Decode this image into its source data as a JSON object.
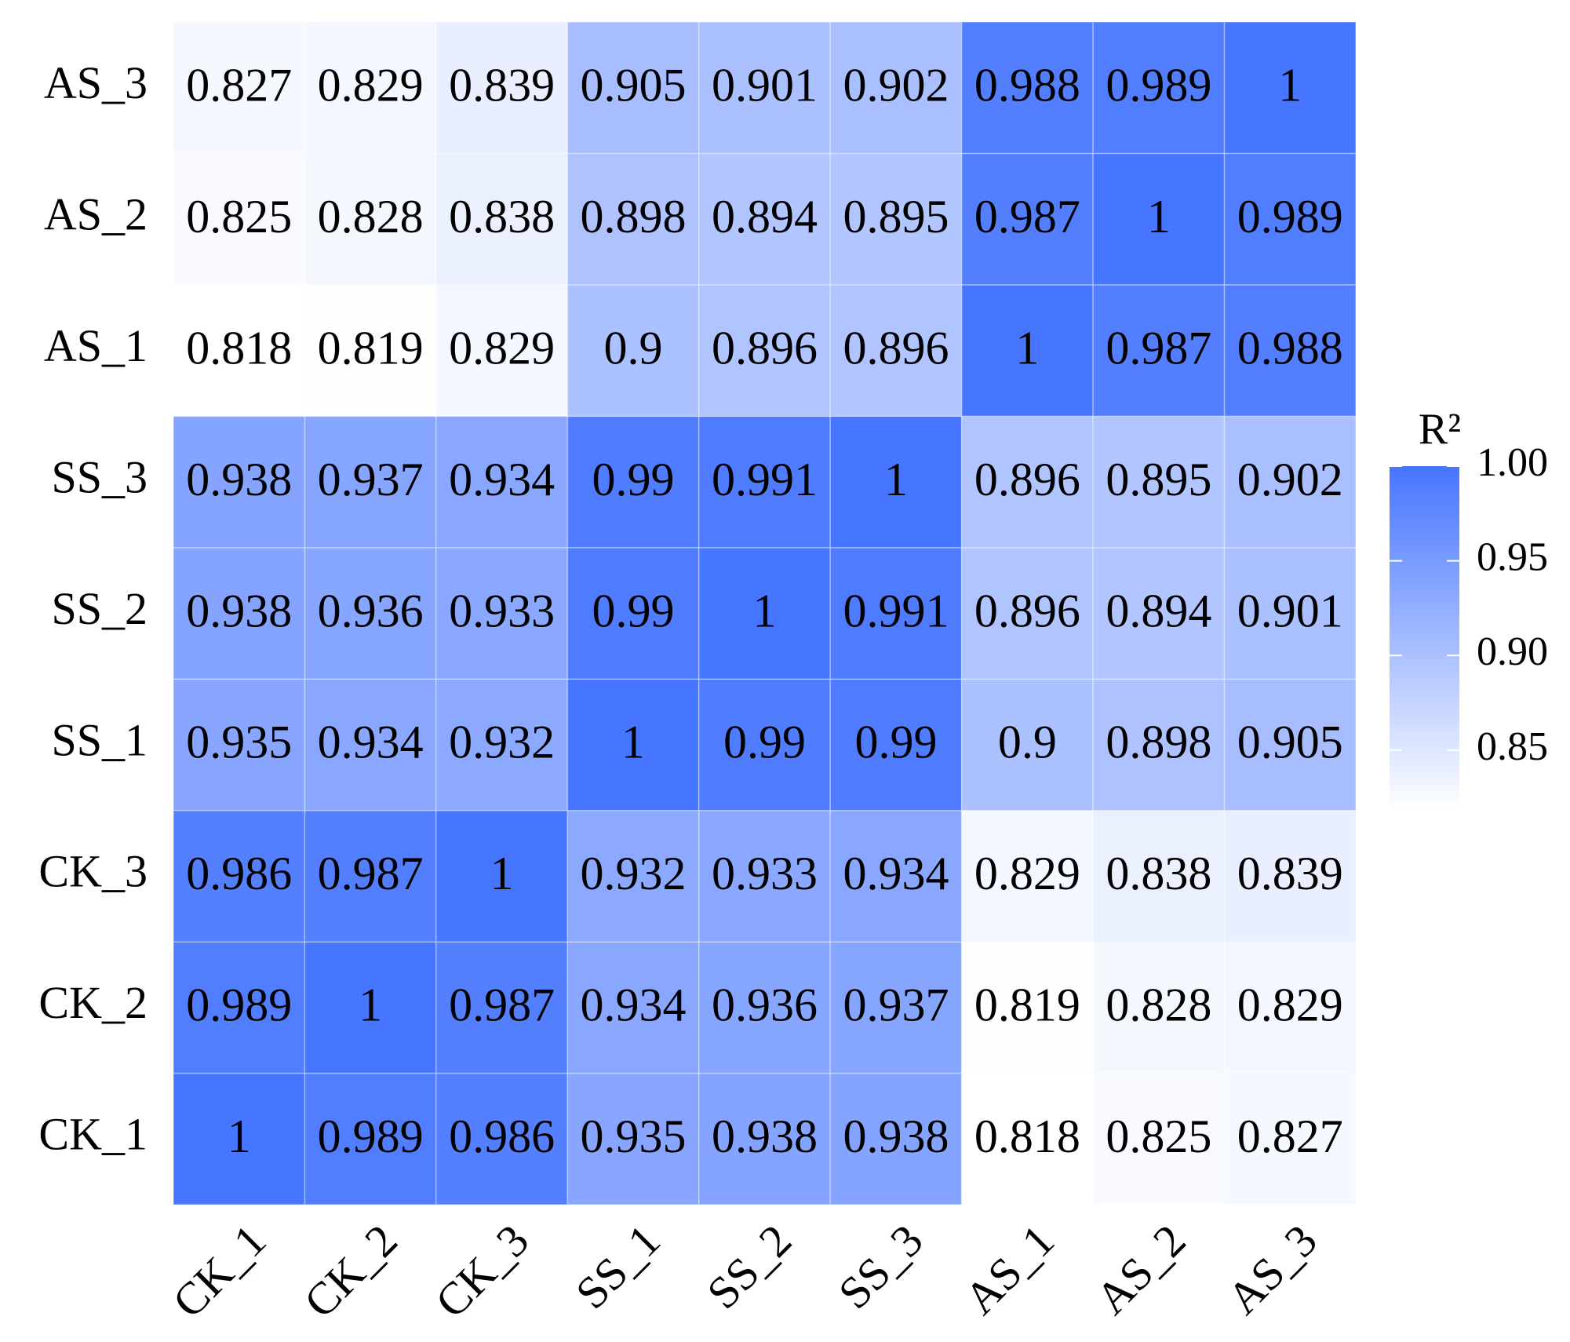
{
  "chart_data": {
    "type": "heatmap",
    "x": [
      "CK_1",
      "CK_2",
      "CK_3",
      "SS_1",
      "SS_2",
      "SS_3",
      "AS_1",
      "AS_2",
      "AS_3"
    ],
    "y": [
      "CK_1",
      "CK_2",
      "CK_3",
      "SS_1",
      "SS_2",
      "SS_3",
      "AS_1",
      "AS_2",
      "AS_3"
    ],
    "values": [
      [
        1,
        0.989,
        0.986,
        0.935,
        0.938,
        0.938,
        0.818,
        0.825,
        0.827
      ],
      [
        0.989,
        1,
        0.987,
        0.934,
        0.936,
        0.937,
        0.819,
        0.828,
        0.829
      ],
      [
        0.986,
        0.987,
        1,
        0.932,
        0.933,
        0.934,
        0.829,
        0.838,
        0.839
      ],
      [
        0.935,
        0.934,
        0.932,
        1,
        0.99,
        0.99,
        0.9,
        0.898,
        0.905
      ],
      [
        0.938,
        0.936,
        0.933,
        0.99,
        1,
        0.991,
        0.896,
        0.894,
        0.901
      ],
      [
        0.938,
        0.937,
        0.934,
        0.99,
        0.991,
        1,
        0.896,
        0.895,
        0.902
      ],
      [
        0.818,
        0.819,
        0.829,
        0.9,
        0.896,
        0.896,
        1,
        0.987,
        0.988
      ],
      [
        0.825,
        0.828,
        0.838,
        0.898,
        0.894,
        0.895,
        0.987,
        1,
        0.989
      ],
      [
        0.827,
        0.829,
        0.839,
        0.905,
        0.901,
        0.902,
        0.988,
        0.989,
        1
      ]
    ],
    "colorbar_title": "R²",
    "colors": [
      "#ffffff",
      "#4675ff"
    ],
    "zlim": [
      0.818,
      1
    ],
    "zticks": [
      0.85,
      {
        "value": 0.9,
        "label": "0.90"
      },
      0.95,
      {
        "value": 1,
        "label": "1.00"
      }
    ]
  }
}
